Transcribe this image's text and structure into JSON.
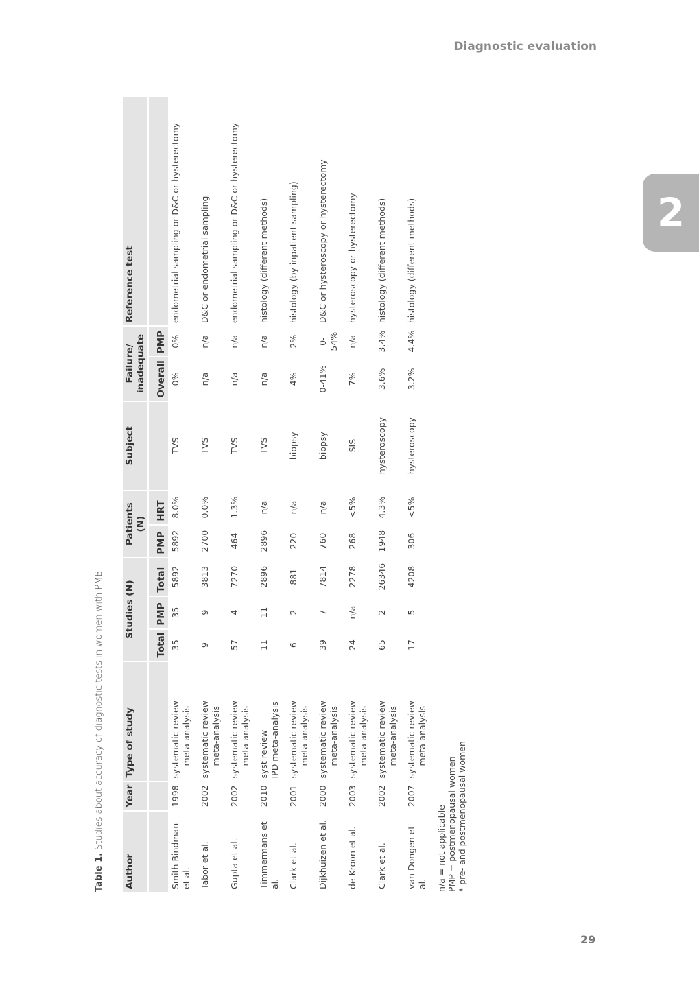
{
  "running_head": "Diagnostic evaluation",
  "chapter_tab": "2",
  "page_number": "29",
  "caption": {
    "label": "Table 1.",
    "text": " Studies about accuracy of diagnostic tests in women with PMB"
  },
  "headers": {
    "author": "Author",
    "year": "Year",
    "type": "Type of study",
    "studies": "Studies (N)",
    "patients": "Patients (N)",
    "subject": "Subject",
    "failure": "Failure/ inadequate",
    "reference": "Reference test",
    "total": "Total",
    "pmp": "PMP",
    "hrt": "HRT",
    "overall": "Overall"
  },
  "rows": [
    {
      "author": "Smith-Bindman et al.",
      "year": "1998",
      "type1": "systematic review",
      "type2": "meta-analysis",
      "st_total": "35",
      "st_pmp": "35",
      "pt_total": "5892",
      "pt_pmp": "5892",
      "hrt": "8.0%",
      "subject": "TVS",
      "fail_overall": "0%",
      "fail_pmp": "0%",
      "reference": "endometrial sampling or D&C or hysterectomy"
    },
    {
      "author": "Tabor et al.",
      "year": "2002",
      "type1": "systematic review",
      "type2": "meta-analysis",
      "st_total": "9",
      "st_pmp": "9",
      "pt_total": "3813",
      "pt_pmp": "2700",
      "hrt": "0.0%",
      "subject": "TVS",
      "fail_overall": "n/a",
      "fail_pmp": "n/a",
      "reference": "D&C or endometrial sampling"
    },
    {
      "author": "Gupta et al.",
      "year": "2002",
      "type1": "systematic review",
      "type2": "meta-analysis",
      "st_total": "57",
      "st_pmp": "4",
      "pt_total": "7270",
      "pt_pmp": "464",
      "hrt": "1.3%",
      "subject": "TVS",
      "fail_overall": "n/a",
      "fail_pmp": "n/a",
      "reference": "endometrial sampling or D&C or hysterectomy"
    },
    {
      "author": "Timmermans et al.",
      "year": "2010",
      "type1": "syst review",
      "type2": "IPD meta-analysis",
      "st_total": "11",
      "st_pmp": "11",
      "pt_total": "2896",
      "pt_pmp": "2896",
      "hrt": "n/a",
      "subject": "TVS",
      "fail_overall": "n/a",
      "fail_pmp": "n/a",
      "reference": "histology (different methods)"
    },
    {
      "author": "Clark et al.",
      "year": "2001",
      "type1": "systematic review",
      "type2": "meta-analysis",
      "st_total": "6",
      "st_pmp": "2",
      "pt_total": "881",
      "pt_pmp": "220",
      "hrt": "n/a",
      "subject": "biopsy",
      "fail_overall": "4%",
      "fail_pmp": "2%",
      "reference": "histology (by inpatient sampling)"
    },
    {
      "author": "Dijkhuizen et al.",
      "year": "2000",
      "type1": "systematic review",
      "type2": "meta-analysis",
      "st_total": "39",
      "st_pmp": "7",
      "pt_total": "7814",
      "pt_pmp": "760",
      "hrt": "n/a",
      "subject": "biopsy",
      "fail_overall": "0-41%",
      "fail_pmp": "0-54%",
      "reference": "D&C or hysteroscopy or hysterectomy"
    },
    {
      "author": "de Kroon et al.",
      "year": "2003",
      "type1": "systematic review",
      "type2": "meta-analysis",
      "st_total": "24",
      "st_pmp": "n/a",
      "pt_total": "2278",
      "pt_pmp": "268",
      "hrt": "<5%",
      "subject": "SIS",
      "fail_overall": "7%",
      "fail_pmp": "n/a",
      "reference": "hysteroscopy or hysterectomy"
    },
    {
      "author": "Clark et al.",
      "year": "2002",
      "type1": "systematic review",
      "type2": "meta-analysis",
      "st_total": "65",
      "st_pmp": "2",
      "pt_total": "26346",
      "pt_pmp": "1948",
      "hrt": "4.3%",
      "subject": "hysteroscopy",
      "fail_overall": "3.6%",
      "fail_pmp": "3.4%",
      "reference": "histology (different methods)"
    },
    {
      "author": "van Dongen et al.",
      "year": "2007",
      "type1": "systematic review",
      "type2": "meta-analysis",
      "st_total": "17",
      "st_pmp": "5",
      "pt_total": "4208",
      "pt_pmp": "306",
      "hrt": "<5%",
      "subject": "hysteroscopy",
      "fail_overall": "3.2%",
      "fail_pmp": "4.4%",
      "reference": "histology (different methods)"
    }
  ],
  "footnotes": [
    "n/a = not applicable",
    "PMP = postmenopausal women",
    "* pre- and postmenopausal women"
  ]
}
